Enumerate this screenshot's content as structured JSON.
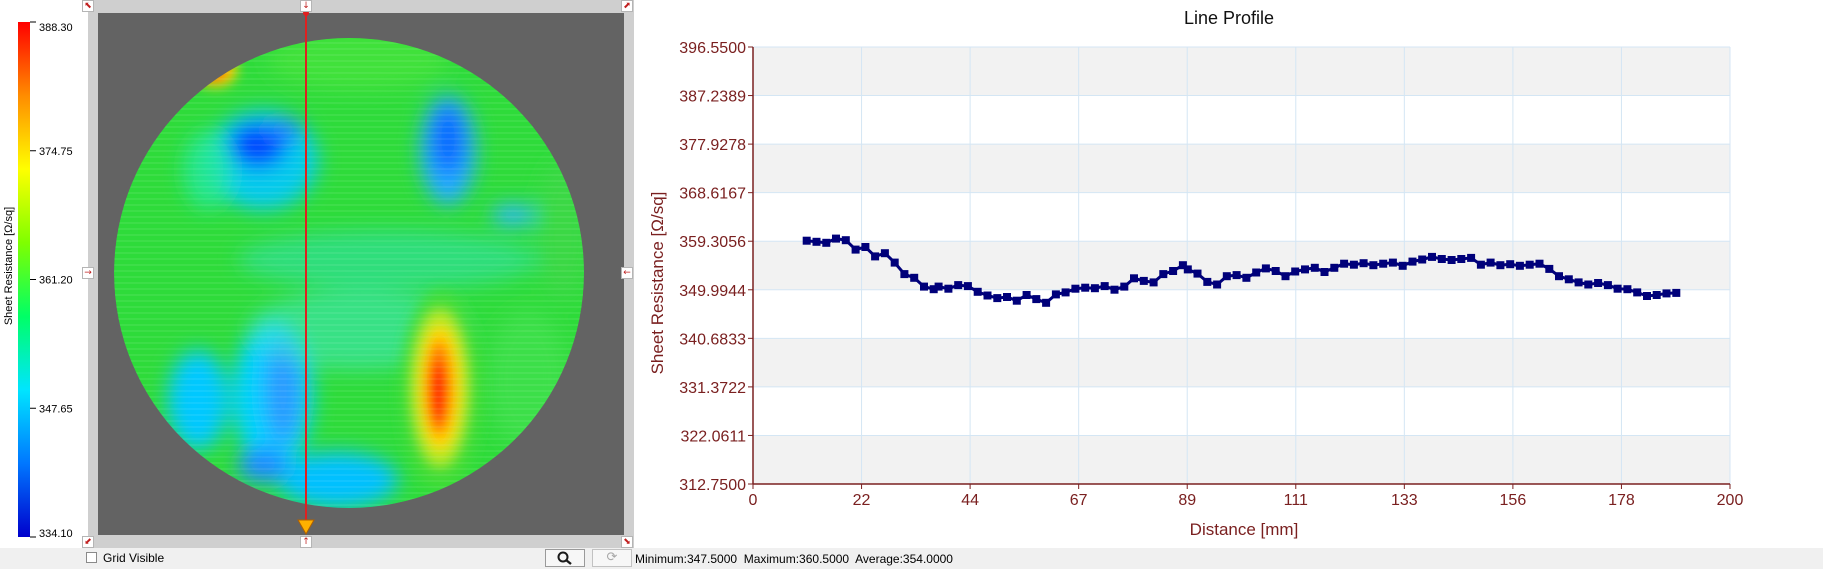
{
  "wafer_map": {
    "colorbar": {
      "title": "Sheet Resistance [Ω/sq]",
      "ticks": [
        "388.30",
        "374.75",
        "361.20",
        "347.65",
        "334.10"
      ],
      "colors": [
        "#ff0000",
        "#ff8c00",
        "#ffff00",
        "#7fff00",
        "#00ff66",
        "#00e5ff",
        "#0077ff",
        "#0000cc"
      ]
    },
    "background_color": "#636363",
    "frame_color": "#cfcfcf",
    "base_color": "#2edb3a",
    "scan_line_color": "#e02020",
    "scan_handle_color": "#ffb000",
    "icons": {
      "corner_tl": "corner-arrow-icon",
      "corner_tr": "corner-arrow-icon",
      "corner_bl": "corner-arrow-icon",
      "corner_br": "corner-arrow-icon",
      "mid_left": "arrow-right-icon",
      "mid_right": "arrow-left-icon",
      "top_handle": "arrow-down-icon",
      "bottom_handle": "arrow-up-icon"
    }
  },
  "status_bar": {
    "grid_visible_label": "Grid Visible",
    "grid_visible_checked": false,
    "zoom_icon": "magnifier-icon",
    "refresh_icon": "refresh-icon",
    "stats": "Minimum:347.5000  Maximum:360.5000  Average:354.0000"
  },
  "chart_data": {
    "type": "line",
    "title": "Line Profile",
    "xlabel": "Distance [mm]",
    "ylabel": "Sheet Resistance [Ω/sq]",
    "xlim": [
      0,
      200
    ],
    "ylim": [
      312.75,
      396.55
    ],
    "x_ticks": [
      "0",
      "22",
      "44",
      "67",
      "89",
      "111",
      "133",
      "156",
      "178",
      "200"
    ],
    "y_ticks": [
      "396.5500",
      "387.2389",
      "377.9278",
      "368.6167",
      "359.3056",
      "349.9944",
      "340.6833",
      "331.3722",
      "322.0611",
      "312.7500"
    ],
    "grid": true,
    "color": "#00007a",
    "series": [
      {
        "x": [
          11,
          13,
          15,
          17,
          19,
          21,
          23,
          25,
          27,
          29,
          31,
          33,
          35,
          37,
          38,
          40,
          42,
          44,
          46,
          48,
          50,
          52,
          54,
          56,
          58,
          60,
          62,
          64,
          66,
          68,
          70,
          72,
          74,
          76,
          78,
          80,
          82,
          84,
          86,
          88,
          89,
          91,
          93,
          95,
          97,
          99,
          101,
          103,
          105,
          107,
          109,
          111,
          113,
          115,
          117,
          119,
          121,
          123,
          125,
          127,
          129,
          131,
          133,
          135,
          137,
          139,
          141,
          143,
          145,
          147,
          149,
          151,
          153,
          155,
          157,
          159,
          161,
          163,
          165,
          167,
          169,
          171,
          173,
          175,
          177,
          179,
          181,
          183,
          185,
          187,
          189
        ],
        "y": [
          359.4,
          359.2,
          359.0,
          359.8,
          359.5,
          357.7,
          358.2,
          356.4,
          357.0,
          355.2,
          353.0,
          352.3,
          350.6,
          350.1,
          350.6,
          350.2,
          350.9,
          350.7,
          349.6,
          348.9,
          348.4,
          348.6,
          347.9,
          349.0,
          348.2,
          347.5,
          349.1,
          349.5,
          350.2,
          350.4,
          350.3,
          350.7,
          350.0,
          350.6,
          352.2,
          351.7,
          351.4,
          353.0,
          353.6,
          354.7,
          353.9,
          353.1,
          351.5,
          351.0,
          352.6,
          352.8,
          352.3,
          353.3,
          354.1,
          353.6,
          352.6,
          353.5,
          353.9,
          354.2,
          353.4,
          354.2,
          355.0,
          354.8,
          355.1,
          354.7,
          355.0,
          355.2,
          354.6,
          355.4,
          355.8,
          356.3,
          355.9,
          355.7,
          355.9,
          356.1,
          354.8,
          355.2,
          354.7,
          354.9,
          354.6,
          354.8,
          355.0,
          354.0,
          352.6,
          352.0,
          351.4,
          351.0,
          351.3,
          350.9,
          350.2,
          350.1,
          349.5,
          348.8,
          349.0,
          349.3,
          349.4
        ]
      }
    ]
  }
}
